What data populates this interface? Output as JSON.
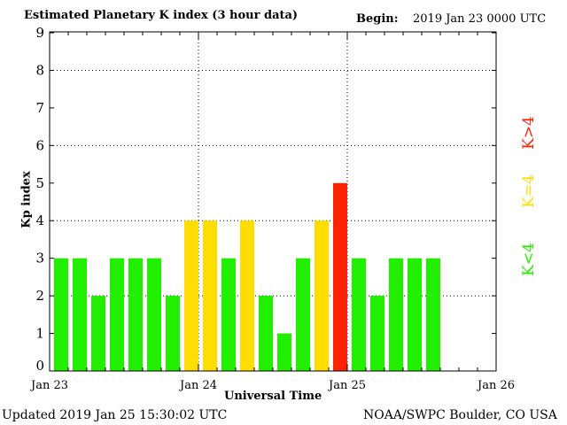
{
  "chart_data": {
    "type": "bar",
    "title": "Estimated Planetary K index (3 hour data)",
    "begin_label": "Begin:",
    "begin_value": "2019 Jan 23 0000 UTC",
    "xlabel": "Universal Time",
    "ylabel": "Kp index",
    "ylim": [
      0,
      9
    ],
    "yticks": [
      "0",
      "1",
      "2",
      "3",
      "4",
      "5",
      "6",
      "7",
      "8",
      "9"
    ],
    "xticks": [
      "Jan 23",
      "Jan 24",
      "Jan 25",
      "Jan 26"
    ],
    "slots_per_day": 8,
    "values": [
      3,
      3,
      2,
      3,
      3,
      3,
      2,
      4,
      4,
      3,
      4,
      2,
      1,
      3,
      4,
      5,
      3,
      2,
      3,
      3,
      3
    ],
    "colors": {
      "low": "#22ee00",
      "equal": "#ffdd00",
      "high": "#ff2200"
    },
    "legend": [
      {
        "label": "K>4",
        "color": "#ff2200"
      },
      {
        "label": "K=4",
        "color": "#ffdd00"
      },
      {
        "label": "K<4",
        "color": "#22ee00"
      }
    ]
  },
  "footer": {
    "updated": "Updated 2019 Jan 25 15:30:02 UTC",
    "source": "NOAA/SWPC Boulder, CO USA"
  }
}
